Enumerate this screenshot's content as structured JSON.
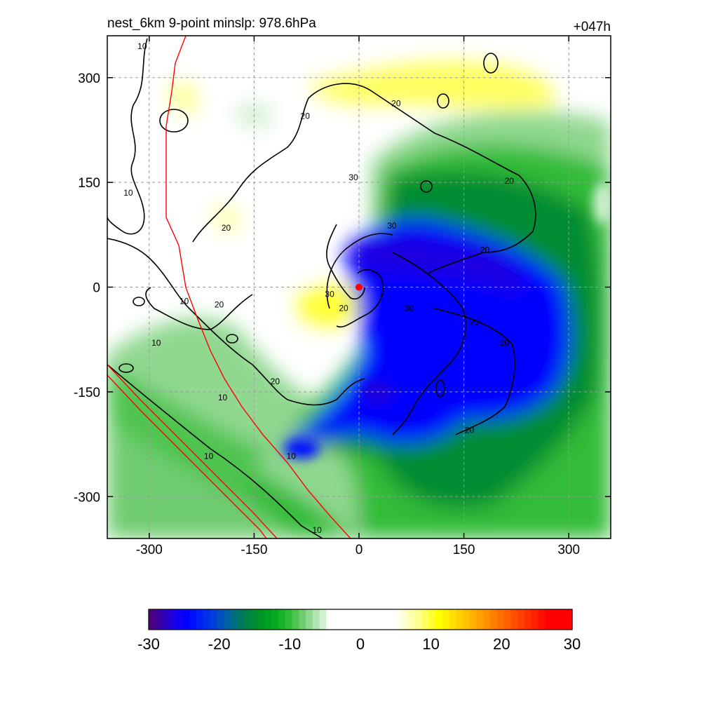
{
  "chart_data": {
    "type": "heatmap",
    "title": "nest_6km  9-point minslp: 978.6hPa",
    "time_label": "+047h",
    "xlim": [
      -360,
      360
    ],
    "ylim": [
      -360,
      360
    ],
    "x_ticks": [
      -300,
      -150,
      0,
      150,
      300
    ],
    "y_ticks": [
      300,
      150,
      0,
      -150,
      -300
    ],
    "x_tick_labels": [
      "-300",
      "-150",
      "0",
      "150",
      "300"
    ],
    "y_tick_labels": [
      "300",
      "150",
      "0",
      "-150",
      "-300"
    ],
    "grid": true,
    "center_marker": {
      "x": 0,
      "y": 0,
      "color": "#ff0000"
    },
    "colorbar": {
      "min": -30,
      "max": 30,
      "levels": 62,
      "tick_values": [
        -30,
        -20,
        -10,
        0,
        10,
        20,
        30
      ],
      "tick_labels": [
        "-30",
        "-20",
        "-10",
        "0",
        "10",
        "20",
        "30"
      ],
      "colors": [
        "#4b0082",
        "#3c00a0",
        "#2d00c0",
        "#1e00e0",
        "#0f00f5",
        "#0000ff",
        "#0010ff",
        "#0020f5",
        "#0030e8",
        "#0040d8",
        "#0050c0",
        "#0060a0",
        "#006e80",
        "#007860",
        "#008246",
        "#008c32",
        "#009628",
        "#00a020",
        "#08aa20",
        "#18b428",
        "#30bc38",
        "#50c450",
        "#70cc70",
        "#90d890",
        "#b0e4b0",
        "#d0f0d0",
        "#ffffff",
        "#ffffff",
        "#ffffff",
        "#ffffff",
        "#ffffff",
        "#ffffff",
        "#ffffff",
        "#ffffff",
        "#ffffff",
        "#ffffff",
        "#fffff0",
        "#ffffd0",
        "#ffffb0",
        "#ffff90",
        "#ffff60",
        "#ffff30",
        "#ffff00",
        "#fff000",
        "#ffe000",
        "#ffd000",
        "#ffc000",
        "#ffb000",
        "#ffa000",
        "#ff9000",
        "#ff8000",
        "#ff7000",
        "#ff6000",
        "#ff5000",
        "#ff4000",
        "#ff3000",
        "#ff2000",
        "#ff1000",
        "#ff0000",
        "#ff0000",
        "#ff0000",
        "#ff0000"
      ]
    },
    "contour_labels": [
      {
        "text": "10",
        "x": -310,
        "y": 345
      },
      {
        "text": "10",
        "x": -330,
        "y": 135
      },
      {
        "text": "20",
        "x": -77,
        "y": 245
      },
      {
        "text": "20",
        "x": -190,
        "y": 85
      },
      {
        "text": "20",
        "x": 53,
        "y": 263
      },
      {
        "text": "30",
        "x": -8,
        "y": 157
      },
      {
        "text": "20",
        "x": 215,
        "y": 152
      },
      {
        "text": "30",
        "x": 47,
        "y": 88
      },
      {
        "text": "20",
        "x": 180,
        "y": 53
      },
      {
        "text": "30",
        "x": -42,
        "y": -10
      },
      {
        "text": "20",
        "x": -22,
        "y": -30
      },
      {
        "text": "30",
        "x": 72,
        "y": -30
      },
      {
        "text": "20",
        "x": -200,
        "y": -25
      },
      {
        "text": "10",
        "x": -250,
        "y": -20
      },
      {
        "text": "10",
        "x": -290,
        "y": -80
      },
      {
        "text": "20",
        "x": 165,
        "y": -50
      },
      {
        "text": "20",
        "x": 208,
        "y": -80
      },
      {
        "text": "20",
        "x": -120,
        "y": -135
      },
      {
        "text": "10",
        "x": -195,
        "y": -158
      },
      {
        "text": "20",
        "x": 158,
        "y": -205
      },
      {
        "text": "10",
        "x": -97,
        "y": -242
      },
      {
        "text": "10",
        "x": -215,
        "y": -242
      },
      {
        "text": "10",
        "x": -60,
        "y": -348
      }
    ]
  }
}
